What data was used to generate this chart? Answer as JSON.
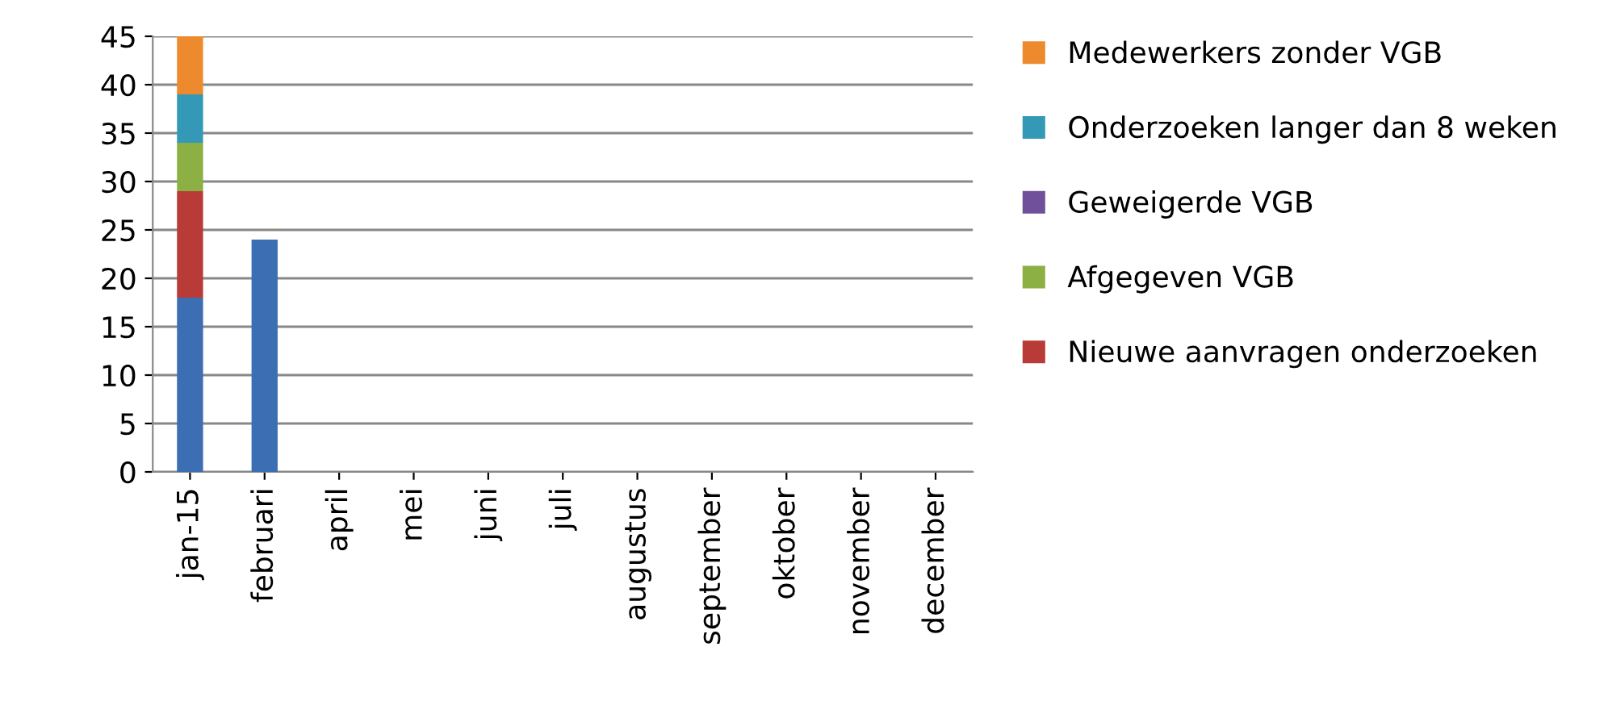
{
  "chart_data": {
    "type": "bar",
    "stacked": true,
    "categories": [
      "jan-15",
      "februari",
      "april",
      "mei",
      "juni",
      "juli",
      "augustus",
      "september",
      "oktober",
      "november",
      "december"
    ],
    "series": [
      {
        "color": "#3c6eb4",
        "values": [
          18,
          24,
          0,
          0,
          0,
          0,
          0,
          0,
          0,
          0,
          0
        ]
      },
      {
        "name": "Nieuwe aanvragen onderzoeken",
        "color": "#b83b37",
        "values": [
          11,
          0,
          0,
          0,
          0,
          0,
          0,
          0,
          0,
          0,
          0
        ]
      },
      {
        "name": "Afgegeven VGB",
        "color": "#8cb043",
        "values": [
          5,
          0,
          0,
          0,
          0,
          0,
          0,
          0,
          0,
          0,
          0
        ]
      },
      {
        "name": "Geweigerde VGB",
        "color": "#70509a",
        "values": [
          0,
          0,
          0,
          0,
          0,
          0,
          0,
          0,
          0,
          0,
          0
        ]
      },
      {
        "name": "Onderzoeken langer dan 8 weken",
        "color": "#3499b7",
        "values": [
          5,
          0,
          0,
          0,
          0,
          0,
          0,
          0,
          0,
          0,
          0
        ]
      },
      {
        "name": "Medewerkers zonder VGB",
        "color": "#ee8a2e",
        "values": [
          6,
          0,
          0,
          0,
          0,
          0,
          0,
          0,
          0,
          0,
          0
        ]
      }
    ],
    "ylim": [
      0,
      45
    ],
    "yticks": [
      0,
      5,
      10,
      15,
      20,
      25,
      30,
      35,
      40,
      45
    ],
    "grid": "y",
    "legend": "right"
  }
}
